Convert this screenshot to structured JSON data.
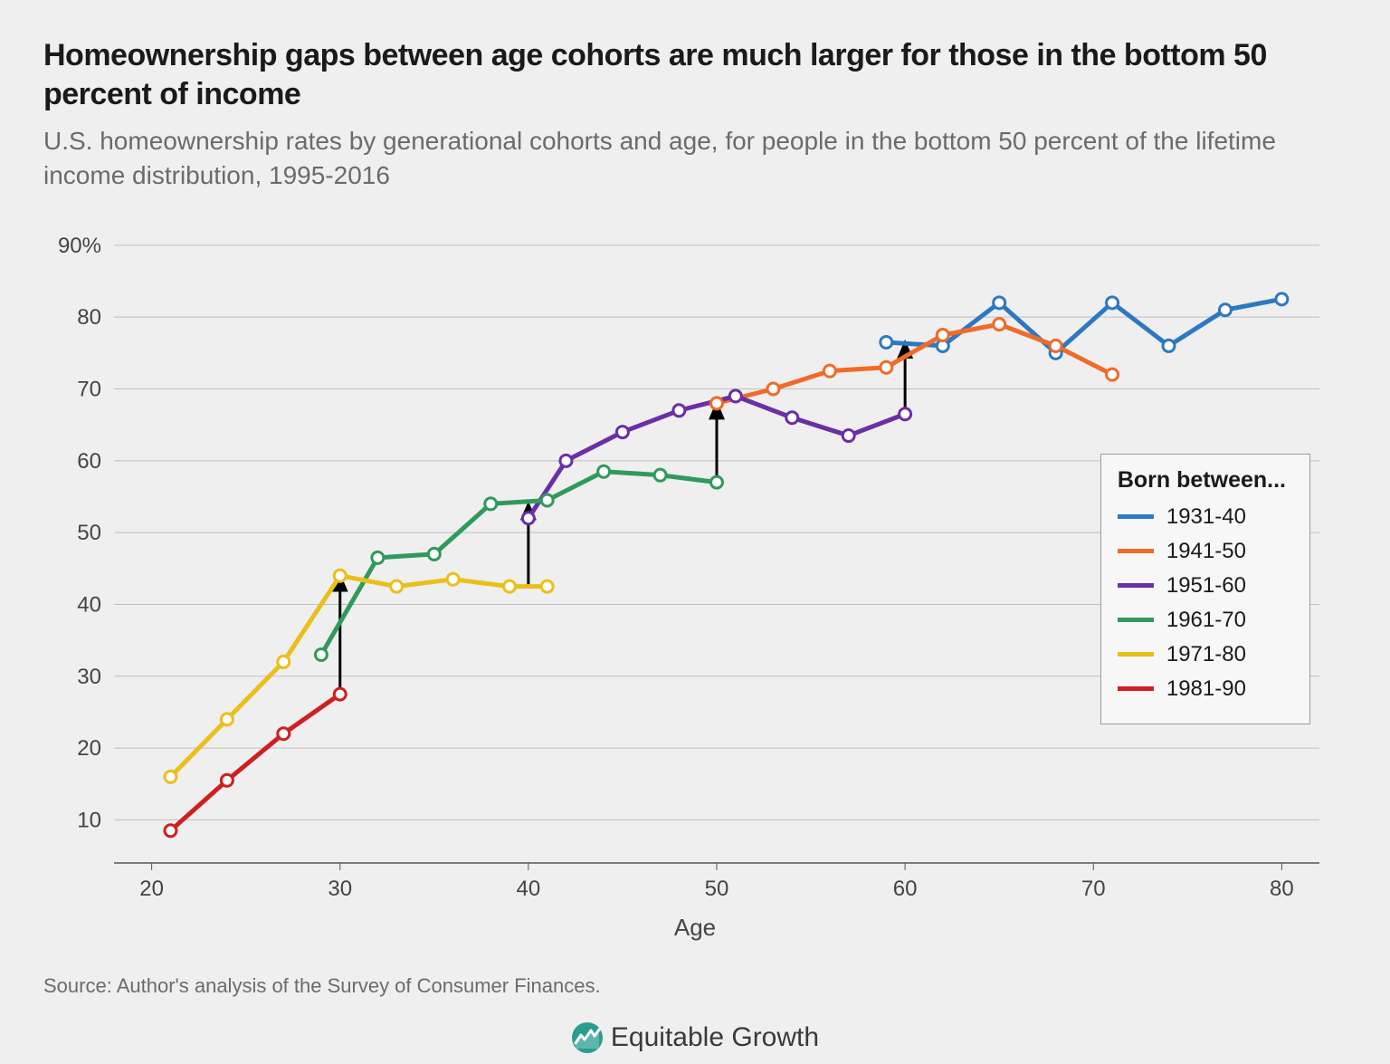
{
  "title": "Homeownership gaps between age cohorts are much larger for those in the bottom 50 percent of income",
  "subtitle": "U.S. homeownership rates by generational cohorts and age, for people in the bottom 50 percent of the lifetime income distribution, 1995-2016",
  "source": "Source: Author's analysis of the Survey of Consumer Finances.",
  "logo_text": "Equitable Growth",
  "chart": {
    "type": "line",
    "xlabel": "Age",
    "xlim": [
      18,
      82
    ],
    "ylim": [
      4,
      92
    ],
    "xticks": [
      20,
      30,
      40,
      50,
      60,
      70,
      80
    ],
    "yticks": [
      10,
      20,
      30,
      40,
      50,
      60,
      70,
      80,
      90
    ],
    "ytick_labels": [
      "10",
      "20",
      "30",
      "40",
      "50",
      "60",
      "70",
      "80",
      "90%"
    ],
    "background_color": "#efefef",
    "grid_color": "#bfbfbf",
    "axis_color": "#555555",
    "axis_fontsize": 24,
    "label_fontsize": 26,
    "line_width": 5,
    "marker_style": "circle",
    "marker_radius": 6.5,
    "marker_fill": "#ffffff",
    "marker_stroke_width": 3,
    "legend": {
      "title": "Born between...",
      "position": "right",
      "bg": "#f7f7f7",
      "border": "#9a9a9a",
      "fontsize": 24
    },
    "series": [
      {
        "name": "1931-40",
        "color": "#2e78c2",
        "x": [
          59,
          62,
          65,
          68,
          71,
          74,
          77,
          80
        ],
        "y": [
          76.5,
          76,
          82,
          75,
          82,
          76,
          81,
          82.5
        ]
      },
      {
        "name": "1941-50",
        "color": "#ef6b29",
        "x": [
          50,
          53,
          56,
          59,
          62,
          65,
          68,
          71
        ],
        "y": [
          68,
          70,
          72.5,
          73,
          77.5,
          79,
          76,
          72
        ]
      },
      {
        "name": "1951-60",
        "color": "#6a2fa5",
        "x": [
          40,
          42,
          45,
          48,
          51,
          54,
          57,
          60
        ],
        "y": [
          52,
          60,
          64,
          67,
          69,
          66,
          63.5,
          66.5
        ]
      },
      {
        "name": "1961-70",
        "color": "#2f9a5b",
        "x": [
          29,
          32,
          35,
          38,
          41,
          44,
          47,
          50
        ],
        "y": [
          33,
          46.5,
          47,
          54,
          54.5,
          58.5,
          58,
          57
        ]
      },
      {
        "name": "1971-80",
        "color": "#eabf1b",
        "x": [
          21,
          24,
          27,
          30,
          33,
          36,
          39,
          41
        ],
        "y": [
          16,
          24,
          32,
          44,
          42.5,
          43.5,
          42.5,
          42.5
        ]
      },
      {
        "name": "1981-90",
        "color": "#cf1f1f",
        "x": [
          21,
          24,
          27,
          30
        ],
        "y": [
          8.5,
          15.5,
          22,
          27.5
        ]
      }
    ],
    "arrows": [
      {
        "x": 30,
        "y_from": 27.5,
        "y_to": 44
      },
      {
        "x": 40,
        "y_from": 42.5,
        "y_to": 54
      },
      {
        "x": 50,
        "y_from": 57,
        "y_to": 68
      },
      {
        "x": 60,
        "y_from": 66.5,
        "y_to": 76.5
      }
    ]
  }
}
